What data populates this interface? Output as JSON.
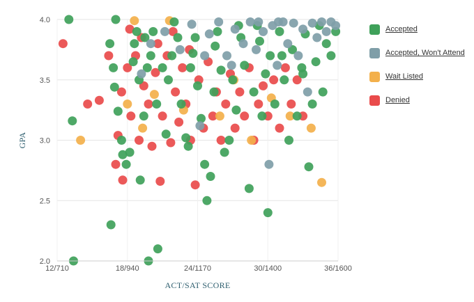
{
  "chart_data": {
    "type": "scatter",
    "title": "",
    "xlabel": "ACT/SAT SCORE",
    "ylabel": "GPA",
    "x_ticks": [
      "12/710",
      "18/940",
      "24/1170",
      "30/1400",
      "36/1600"
    ],
    "x_tick_values": [
      12,
      18,
      24,
      30,
      36
    ],
    "y_ticks": [
      "2.0",
      "2.5",
      "3.0",
      "3.5",
      "4.0"
    ],
    "y_tick_values": [
      2.0,
      2.5,
      3.0,
      3.5,
      4.0
    ],
    "xlim": [
      12,
      36
    ],
    "ylim": [
      2.0,
      4.0
    ],
    "grid": "horizontal",
    "legend_position": "right",
    "series": [
      {
        "name": "Accepted",
        "color": "#3fa15a",
        "points": [
          [
            13.0,
            4.0
          ],
          [
            13.3,
            3.16
          ],
          [
            13.4,
            2.0
          ],
          [
            17.0,
            4.0
          ],
          [
            16.8,
            3.6
          ],
          [
            16.5,
            3.8
          ],
          [
            16.9,
            3.44
          ],
          [
            17.2,
            3.24
          ],
          [
            16.6,
            2.3
          ],
          [
            17.5,
            3.0
          ],
          [
            17.6,
            2.88
          ],
          [
            17.9,
            2.8
          ],
          [
            18.2,
            2.9
          ],
          [
            18.5,
            3.65
          ],
          [
            18.6,
            3.8
          ],
          [
            19.0,
            3.5
          ],
          [
            19.1,
            2.67
          ],
          [
            19.4,
            3.2
          ],
          [
            19.5,
            3.85
          ],
          [
            19.8,
            2.0
          ],
          [
            20.0,
            3.7
          ],
          [
            20.2,
            3.9
          ],
          [
            20.6,
            2.1
          ],
          [
            21.0,
            3.6
          ],
          [
            21.3,
            3.05
          ],
          [
            21.5,
            3.5
          ],
          [
            22.0,
            3.98
          ],
          [
            22.3,
            3.85
          ],
          [
            22.6,
            3.3
          ],
          [
            23.0,
            3.02
          ],
          [
            23.2,
            2.95
          ],
          [
            23.4,
            3.6
          ],
          [
            23.6,
            3.72
          ],
          [
            24.0,
            3.45
          ],
          [
            24.3,
            3.18
          ],
          [
            24.6,
            2.8
          ],
          [
            24.8,
            2.5
          ],
          [
            25.1,
            2.7
          ],
          [
            25.4,
            3.4
          ],
          [
            25.7,
            3.9
          ],
          [
            26.0,
            3.58
          ],
          [
            26.3,
            2.9
          ],
          [
            26.7,
            3.0
          ],
          [
            27.0,
            3.5
          ],
          [
            27.3,
            3.25
          ],
          [
            27.7,
            3.85
          ],
          [
            28.0,
            3.62
          ],
          [
            28.4,
            2.6
          ],
          [
            28.8,
            3.4
          ],
          [
            29.1,
            3.95
          ],
          [
            29.5,
            3.2
          ],
          [
            29.8,
            3.55
          ],
          [
            30.0,
            2.4
          ],
          [
            30.2,
            3.7
          ],
          [
            30.6,
            3.3
          ],
          [
            31.0,
            3.9
          ],
          [
            31.4,
            3.5
          ],
          [
            31.8,
            3.0
          ],
          [
            32.1,
            3.75
          ],
          [
            32.5,
            3.2
          ],
          [
            32.9,
            3.6
          ],
          [
            33.2,
            3.88
          ],
          [
            33.5,
            2.78
          ],
          [
            33.8,
            3.3
          ],
          [
            34.1,
            3.65
          ],
          [
            34.4,
            3.95
          ],
          [
            34.7,
            3.4
          ],
          [
            35.0,
            3.8
          ],
          [
            35.4,
            3.7
          ],
          [
            35.8,
            3.9
          ],
          [
            20.5,
            3.3
          ],
          [
            21.8,
            3.7
          ],
          [
            23.8,
            3.85
          ],
          [
            25.5,
            3.78
          ],
          [
            27.5,
            3.95
          ],
          [
            29.3,
            3.82
          ],
          [
            31.2,
            3.7
          ],
          [
            33.0,
            3.55
          ],
          [
            18.8,
            3.9
          ],
          [
            19.7,
            3.6
          ]
        ]
      },
      {
        "name": "Accepted, Won't Attend",
        "color": "#7f9ea8",
        "points": [
          [
            19.2,
            3.55
          ],
          [
            20.0,
            3.8
          ],
          [
            21.2,
            3.9
          ],
          [
            22.5,
            3.75
          ],
          [
            23.5,
            3.96
          ],
          [
            24.2,
            3.12
          ],
          [
            25.0,
            3.88
          ],
          [
            25.8,
            3.98
          ],
          [
            26.5,
            3.7
          ],
          [
            27.2,
            3.92
          ],
          [
            27.9,
            3.8
          ],
          [
            28.5,
            3.98
          ],
          [
            29.0,
            3.75
          ],
          [
            29.6,
            3.9
          ],
          [
            30.1,
            2.8
          ],
          [
            30.4,
            3.95
          ],
          [
            30.8,
            3.62
          ],
          [
            31.3,
            3.98
          ],
          [
            31.7,
            3.8
          ],
          [
            32.2,
            3.97
          ],
          [
            32.6,
            3.7
          ],
          [
            33.0,
            3.92
          ],
          [
            33.4,
            3.4
          ],
          [
            33.8,
            3.97
          ],
          [
            34.2,
            3.85
          ],
          [
            34.6,
            3.98
          ],
          [
            35.0,
            3.9
          ],
          [
            35.4,
            3.98
          ],
          [
            35.8,
            3.95
          ],
          [
            30.9,
            3.98
          ],
          [
            29.2,
            3.98
          ],
          [
            26.9,
            3.62
          ],
          [
            24.6,
            3.7
          ]
        ]
      },
      {
        "name": "Wait Listed",
        "color": "#f3b04b",
        "points": [
          [
            14.0,
            3.0
          ],
          [
            18.0,
            3.3
          ],
          [
            19.3,
            3.1
          ],
          [
            20.3,
            3.38
          ],
          [
            22.8,
            3.25
          ],
          [
            25.9,
            3.2
          ],
          [
            28.6,
            3.0
          ],
          [
            30.3,
            3.35
          ],
          [
            33.7,
            3.1
          ],
          [
            34.6,
            2.65
          ],
          [
            18.6,
            3.99
          ],
          [
            21.6,
            3.99
          ],
          [
            31.9,
            3.2
          ],
          [
            27.1,
            3.5
          ]
        ]
      },
      {
        "name": "Denied",
        "color": "#e94b4b",
        "points": [
          [
            12.5,
            3.8
          ],
          [
            14.6,
            3.3
          ],
          [
            15.6,
            3.33
          ],
          [
            16.4,
            3.7
          ],
          [
            17.0,
            2.8
          ],
          [
            17.2,
            3.04
          ],
          [
            17.6,
            2.67
          ],
          [
            17.5,
            3.4
          ],
          [
            18.0,
            3.6
          ],
          [
            18.3,
            3.2
          ],
          [
            18.7,
            3.7
          ],
          [
            19.0,
            3.0
          ],
          [
            19.4,
            3.45
          ],
          [
            19.8,
            3.3
          ],
          [
            20.1,
            2.95
          ],
          [
            20.4,
            3.56
          ],
          [
            20.8,
            2.66
          ],
          [
            21.0,
            3.2
          ],
          [
            21.4,
            3.7
          ],
          [
            21.7,
            2.98
          ],
          [
            22.1,
            3.4
          ],
          [
            22.4,
            3.15
          ],
          [
            22.7,
            3.6
          ],
          [
            23.0,
            3.3
          ],
          [
            23.4,
            3.0
          ],
          [
            23.8,
            2.63
          ],
          [
            24.1,
            3.5
          ],
          [
            24.5,
            3.1
          ],
          [
            24.9,
            3.65
          ],
          [
            25.3,
            3.2
          ],
          [
            25.6,
            3.4
          ],
          [
            26.0,
            3.0
          ],
          [
            26.4,
            3.3
          ],
          [
            26.8,
            3.55
          ],
          [
            27.2,
            3.1
          ],
          [
            27.6,
            3.4
          ],
          [
            28.0,
            3.2
          ],
          [
            28.4,
            3.6
          ],
          [
            28.8,
            3.0
          ],
          [
            29.2,
            3.3
          ],
          [
            29.6,
            3.45
          ],
          [
            30.0,
            3.2
          ],
          [
            30.5,
            3.5
          ],
          [
            31.0,
            3.1
          ],
          [
            31.5,
            3.6
          ],
          [
            32.0,
            3.3
          ],
          [
            32.5,
            3.5
          ],
          [
            33.0,
            3.2
          ],
          [
            18.2,
            3.92
          ],
          [
            19.2,
            3.85
          ],
          [
            20.6,
            3.8
          ],
          [
            21.9,
            3.9
          ],
          [
            23.3,
            3.75
          ]
        ]
      }
    ]
  }
}
